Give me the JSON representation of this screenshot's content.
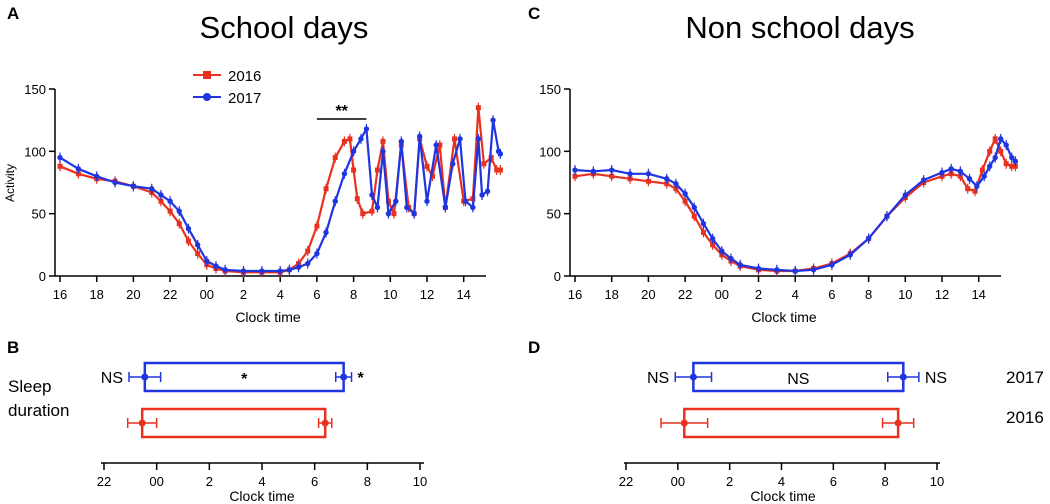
{
  "panels": {
    "a": {
      "letter": "A",
      "title": "School days"
    },
    "b": {
      "letter": "B",
      "row_label_line1": "Sleep",
      "row_label_line2": "duration"
    },
    "c": {
      "letter": "C",
      "title": "Non school days"
    },
    "d": {
      "letter": "D"
    }
  },
  "legend": {
    "entries": [
      "2016",
      "2017"
    ]
  },
  "colors": {
    "y2016": "#e8321f",
    "y2017": "#1f35e0"
  },
  "chart_data": [
    {
      "id": "A",
      "type": "line",
      "title": "School days",
      "xlabel": "Clock time",
      "ylabel": "Activity",
      "x_ticks": [
        "16",
        "18",
        "20",
        "22",
        "00",
        "2",
        "4",
        "6",
        "8",
        "10",
        "12",
        "14"
      ],
      "x_range_hours": [
        15.8,
        40.0
      ],
      "ylim": [
        0,
        150
      ],
      "y_ticks": [
        "0",
        "50",
        "100",
        "150"
      ],
      "legend_position": "top-left",
      "significance": {
        "label": "**",
        "from_hour": 30.0,
        "to_hour": 32.7
      },
      "series": [
        {
          "name": "2016",
          "color": "#e8321f",
          "points": [
            [
              16,
              88
            ],
            [
              17,
              82
            ],
            [
              18,
              78
            ],
            [
              19,
              76
            ],
            [
              20,
              72
            ],
            [
              21,
              67
            ],
            [
              21.5,
              60
            ],
            [
              22,
              52
            ],
            [
              22.5,
              42
            ],
            [
              23,
              28
            ],
            [
              23.5,
              18
            ],
            [
              24,
              9
            ],
            [
              24.5,
              6
            ],
            [
              25,
              4
            ],
            [
              26,
              3
            ],
            [
              27,
              3
            ],
            [
              28,
              3
            ],
            [
              28.5,
              5
            ],
            [
              29,
              10
            ],
            [
              29.5,
              20
            ],
            [
              30,
              40
            ],
            [
              30.5,
              70
            ],
            [
              31,
              95
            ],
            [
              31.5,
              108
            ],
            [
              31.8,
              110
            ],
            [
              32,
              85
            ],
            [
              32.2,
              62
            ],
            [
              32.5,
              50
            ],
            [
              33,
              52
            ],
            [
              33.3,
              85
            ],
            [
              33.6,
              108
            ],
            [
              33.9,
              60
            ],
            [
              34.2,
              50
            ],
            [
              34.6,
              105
            ],
            [
              35,
              55
            ],
            [
              35.3,
              50
            ],
            [
              35.6,
              110
            ],
            [
              36,
              88
            ],
            [
              36.3,
              80
            ],
            [
              36.7,
              105
            ],
            [
              37,
              55
            ],
            [
              37.5,
              110
            ],
            [
              38,
              60
            ],
            [
              38.5,
              62
            ],
            [
              38.8,
              135
            ],
            [
              39.1,
              90
            ],
            [
              39.5,
              95
            ],
            [
              39.8,
              85
            ],
            [
              40,
              85
            ]
          ]
        },
        {
          "name": "2017",
          "color": "#1f35e0",
          "points": [
            [
              16,
              95
            ],
            [
              17,
              86
            ],
            [
              18,
              80
            ],
            [
              19,
              75
            ],
            [
              20,
              72
            ],
            [
              21,
              70
            ],
            [
              21.5,
              65
            ],
            [
              22,
              60
            ],
            [
              22.5,
              52
            ],
            [
              23,
              38
            ],
            [
              23.5,
              25
            ],
            [
              24,
              12
            ],
            [
              24.5,
              8
            ],
            [
              25,
              5
            ],
            [
              26,
              4
            ],
            [
              27,
              4
            ],
            [
              28,
              4
            ],
            [
              28.5,
              5
            ],
            [
              29,
              7
            ],
            [
              29.5,
              10
            ],
            [
              30,
              18
            ],
            [
              30.5,
              35
            ],
            [
              31,
              60
            ],
            [
              31.5,
              82
            ],
            [
              32,
              100
            ],
            [
              32.4,
              110
            ],
            [
              32.7,
              118
            ],
            [
              33,
              65
            ],
            [
              33.3,
              55
            ],
            [
              33.6,
              100
            ],
            [
              33.9,
              50
            ],
            [
              34.3,
              60
            ],
            [
              34.6,
              108
            ],
            [
              34.9,
              55
            ],
            [
              35.3,
              50
            ],
            [
              35.6,
              112
            ],
            [
              36,
              60
            ],
            [
              36.5,
              105
            ],
            [
              37,
              55
            ],
            [
              37.4,
              90
            ],
            [
              37.8,
              110
            ],
            [
              38.1,
              60
            ],
            [
              38.5,
              55
            ],
            [
              38.8,
              110
            ],
            [
              39,
              65
            ],
            [
              39.3,
              68
            ],
            [
              39.6,
              125
            ],
            [
              39.9,
              100
            ],
            [
              40,
              98
            ]
          ]
        }
      ]
    },
    {
      "id": "C",
      "type": "line",
      "title": "Non school days",
      "xlabel": "Clock time",
      "ylabel": "",
      "x_ticks": [
        "16",
        "18",
        "20",
        "22",
        "00",
        "2",
        "4",
        "6",
        "8",
        "10",
        "12",
        "14"
      ],
      "x_range_hours": [
        15.8,
        40.0
      ],
      "ylim": [
        0,
        150
      ],
      "y_ticks": [
        "0",
        "50",
        "100",
        "150"
      ],
      "series": [
        {
          "name": "2016",
          "color": "#e8321f",
          "points": [
            [
              16,
              80
            ],
            [
              17,
              82
            ],
            [
              18,
              80
            ],
            [
              19,
              78
            ],
            [
              20,
              76
            ],
            [
              21,
              74
            ],
            [
              21.5,
              70
            ],
            [
              22,
              60
            ],
            [
              22.5,
              48
            ],
            [
              23,
              35
            ],
            [
              23.5,
              25
            ],
            [
              24,
              17
            ],
            [
              24.5,
              12
            ],
            [
              25,
              8
            ],
            [
              26,
              5
            ],
            [
              27,
              4
            ],
            [
              28,
              4
            ],
            [
              29,
              6
            ],
            [
              30,
              10
            ],
            [
              31,
              18
            ],
            [
              32,
              30
            ],
            [
              33,
              48
            ],
            [
              34,
              63
            ],
            [
              35,
              75
            ],
            [
              36,
              80
            ],
            [
              36.5,
              82
            ],
            [
              37,
              80
            ],
            [
              37.4,
              70
            ],
            [
              37.8,
              68
            ],
            [
              38.2,
              85
            ],
            [
              38.6,
              100
            ],
            [
              38.9,
              110
            ],
            [
              39.2,
              100
            ],
            [
              39.5,
              90
            ],
            [
              39.8,
              88
            ],
            [
              40,
              88
            ]
          ]
        },
        {
          "name": "2017",
          "color": "#1f35e0",
          "points": [
            [
              16,
              85
            ],
            [
              17,
              84
            ],
            [
              18,
              85
            ],
            [
              19,
              82
            ],
            [
              20,
              82
            ],
            [
              21,
              78
            ],
            [
              21.5,
              74
            ],
            [
              22,
              66
            ],
            [
              22.5,
              55
            ],
            [
              23,
              42
            ],
            [
              23.5,
              30
            ],
            [
              24,
              20
            ],
            [
              24.5,
              14
            ],
            [
              25,
              9
            ],
            [
              26,
              6
            ],
            [
              27,
              5
            ],
            [
              28,
              4
            ],
            [
              29,
              5
            ],
            [
              30,
              9
            ],
            [
              31,
              17
            ],
            [
              32,
              30
            ],
            [
              33,
              48
            ],
            [
              34,
              65
            ],
            [
              35,
              77
            ],
            [
              36,
              83
            ],
            [
              36.5,
              86
            ],
            [
              37,
              84
            ],
            [
              37.5,
              78
            ],
            [
              37.9,
              72
            ],
            [
              38.3,
              80
            ],
            [
              38.6,
              88
            ],
            [
              38.9,
              95
            ],
            [
              39.2,
              110
            ],
            [
              39.5,
              105
            ],
            [
              39.8,
              95
            ],
            [
              40,
              92
            ]
          ]
        }
      ]
    },
    {
      "id": "B",
      "type": "box",
      "xlabel": "Clock time",
      "x_ticks": [
        "22",
        "00",
        "2",
        "4",
        "6",
        "8",
        "10"
      ],
      "x_range_hours": [
        22,
        34
      ],
      "rows": [
        {
          "name": "2017",
          "color": "#1f35e0",
          "onset": 23.55,
          "wake": 31.1,
          "onset_err": 0.6,
          "wake_err": 0.3,
          "onset_sig": "NS",
          "center_sig": "*",
          "wake_sig": "*"
        },
        {
          "name": "2016",
          "color": "#e8321f",
          "onset": 23.45,
          "wake": 30.4,
          "onset_err": 0.55,
          "wake_err": 0.25,
          "onset_sig": "",
          "center_sig": "",
          "wake_sig": ""
        }
      ]
    },
    {
      "id": "D",
      "type": "box",
      "xlabel": "Clock time",
      "x_ticks": [
        "22",
        "00",
        "2",
        "4",
        "6",
        "8",
        "10"
      ],
      "x_range_hours": [
        22,
        34
      ],
      "row_labels": [
        "2017",
        "2016"
      ],
      "rows": [
        {
          "name": "2017",
          "color": "#1f35e0",
          "onset": 24.6,
          "wake": 32.7,
          "onset_err": 0.7,
          "wake_err": 0.6,
          "onset_sig": "NS",
          "center_sig": "NS",
          "wake_sig": "NS"
        },
        {
          "name": "2016",
          "color": "#e8321f",
          "onset": 24.25,
          "wake": 32.5,
          "onset_err": 0.9,
          "wake_err": 0.6,
          "onset_sig": "",
          "center_sig": "",
          "wake_sig": ""
        }
      ]
    }
  ]
}
